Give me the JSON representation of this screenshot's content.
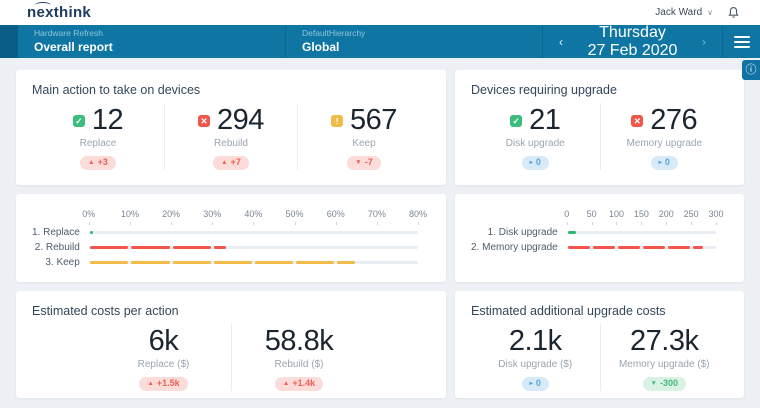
{
  "topbar": {
    "logo": "nexthink",
    "user": "Jack Ward"
  },
  "navbar": {
    "report_category": "Hardware Refresh",
    "report_title": "Overall report",
    "hierarchy_label": "DefaultHierarchy",
    "hierarchy_value": "Global",
    "date_day": "Thursday",
    "date_value": "27 Feb 2020",
    "prev_arrow": "‹",
    "next_arrow": "›"
  },
  "panels": {
    "main_actions": {
      "title": "Main action to take on devices",
      "metrics": [
        {
          "icon": "check",
          "value": "12",
          "label": "Replace",
          "badge": {
            "arrow": "up",
            "text": "+3",
            "type": "red"
          }
        },
        {
          "icon": "cross",
          "value": "294",
          "label": "Rebuild",
          "badge": {
            "arrow": "up",
            "text": "+7",
            "type": "red"
          }
        },
        {
          "icon": "warning",
          "value": "567",
          "label": "Keep",
          "badge": {
            "arrow": "down",
            "text": "-7",
            "type": "red"
          }
        }
      ]
    },
    "devices_upgrade": {
      "title": "Devices requiring upgrade",
      "metrics": [
        {
          "icon": "check",
          "value": "21",
          "label": "Disk upgrade",
          "badge": {
            "arrow": "right",
            "text": "0",
            "type": "blue"
          }
        },
        {
          "icon": "cross",
          "value": "276",
          "label": "Memory upgrade",
          "badge": {
            "arrow": "right",
            "text": "0",
            "type": "blue"
          }
        }
      ]
    },
    "costs_per_action": {
      "title": "Estimated costs per action",
      "metrics": [
        {
          "value": "6k",
          "label": "Replace ($)",
          "badge": {
            "arrow": "up",
            "text": "+1.5k",
            "type": "red"
          }
        },
        {
          "value": "58.8k",
          "label": "Rebuild ($)",
          "badge": {
            "arrow": "up",
            "text": "+1.4k",
            "type": "red"
          }
        }
      ]
    },
    "upgrade_costs": {
      "title": "Estimated additional upgrade costs",
      "metrics": [
        {
          "value": "2.1k",
          "label": "Disk upgrade ($)",
          "badge": {
            "arrow": "right",
            "text": "0",
            "type": "blue"
          }
        },
        {
          "value": "27.3k",
          "label": "Memory upgrade ($)",
          "badge": {
            "arrow": "down",
            "text": "-300",
            "type": "green"
          }
        }
      ]
    }
  },
  "chart_data": [
    {
      "type": "bar",
      "orientation": "horizontal",
      "title": "Main action to take on devices (%)",
      "categories": [
        "1. Replace",
        "2. Rebuild",
        "3. Keep"
      ],
      "values": [
        1.4,
        33.7,
        65
      ],
      "colors": [
        "#2eb873",
        "#f4544c",
        "#f0bc47"
      ],
      "xlim": [
        0,
        80
      ],
      "step": 10,
      "tick_labels": [
        "0%",
        "10%",
        "20%",
        "30%",
        "40%",
        "50%",
        "60%",
        "70%",
        "80%"
      ],
      "legend_position": "none",
      "grid": "ticks-only"
    },
    {
      "type": "bar",
      "orientation": "horizontal",
      "title": "Devices requiring upgrade (count)",
      "categories": [
        "1. Disk upgrade",
        "2. Memory upgrade"
      ],
      "values": [
        21,
        276
      ],
      "colors": [
        "#2eb873",
        "#f4544c"
      ],
      "xlim": [
        0,
        300
      ],
      "step": 50,
      "tick_labels": [
        "0",
        "50",
        "100",
        "150",
        "200",
        "250",
        "300"
      ],
      "legend_position": "none",
      "grid": "ticks-only"
    }
  ],
  "colors": {
    "navbar": "#0f76a4",
    "navbar_dark": "#0a5d86",
    "page_bg": "#edf0f5",
    "badges": {
      "red": {
        "bg": "#fbdcd9",
        "fg": "#ed5f55"
      },
      "blue": {
        "bg": "#d8eaf8",
        "fg": "#58a6dc"
      },
      "green": {
        "bg": "#d9f2e3",
        "fg": "#43b97f"
      }
    },
    "icons": {
      "check": "#3dbd7d",
      "cross": "#f0564a",
      "warning": "#f0bc47"
    },
    "info_button": "#1172a3"
  },
  "glyphs": {
    "up": "▲",
    "down": "▼",
    "right": "▸",
    "check": "✓",
    "cross": "✕",
    "warning": "!"
  }
}
